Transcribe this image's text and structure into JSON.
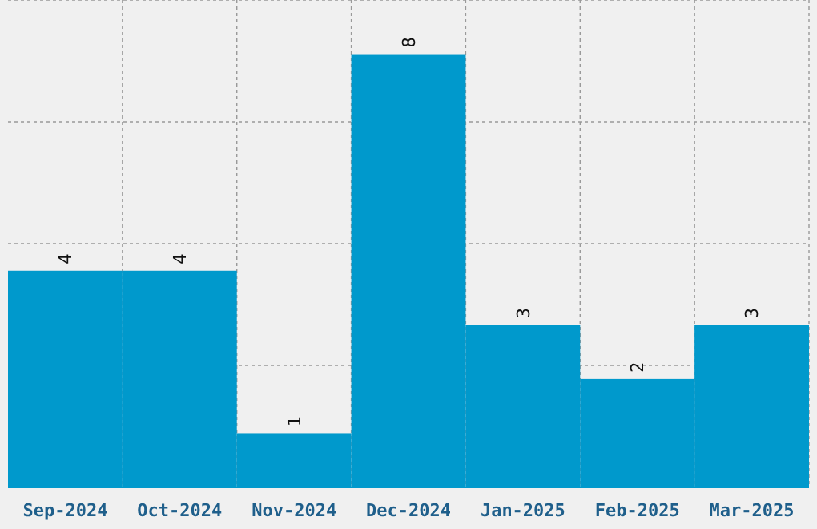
{
  "chart_data": {
    "type": "bar",
    "categories": [
      "Sep-2024",
      "Oct-2024",
      "Nov-2024",
      "Dec-2024",
      "Jan-2025",
      "Feb-2025",
      "Mar-2025"
    ],
    "values": [
      4,
      4,
      1,
      8,
      3,
      2,
      3
    ],
    "color": "#0099cc",
    "ylim": [
      0,
      9
    ],
    "yticks": [
      {
        "value": 2.25,
        "label": null
      },
      {
        "value": 4.5,
        "label": null
      },
      {
        "value": 6.75,
        "label": null
      },
      {
        "value": 9,
        "label": null
      }
    ],
    "tick_labels": "x",
    "grid": true,
    "data_labels": true
  }
}
